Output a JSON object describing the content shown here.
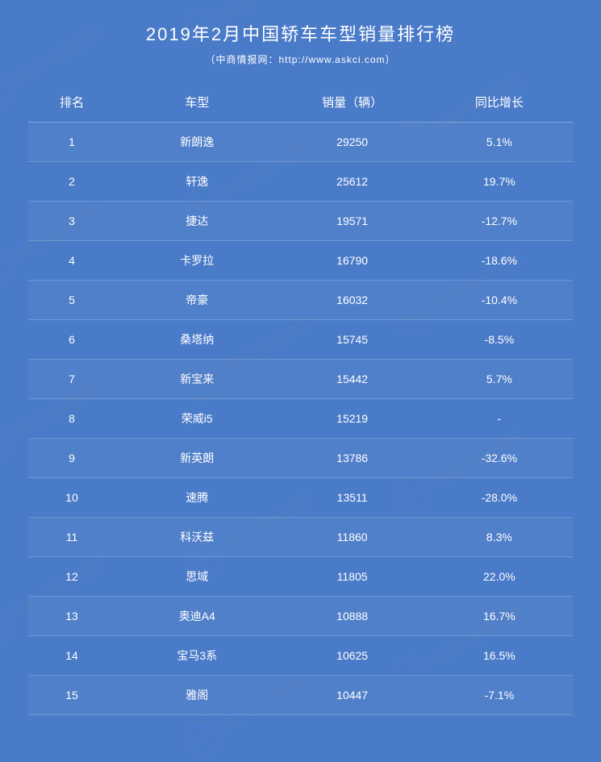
{
  "title": "2019年2月中国轿车车型销量排行榜",
  "subtitle": "（中商情报网：http://www.askci.com）",
  "watermark_text": "中商产业研究院",
  "background_color": "#4a7bc8",
  "text_color": "#ffffff",
  "columns": [
    "排名",
    "车型",
    "销量（辆）",
    "同比增长"
  ],
  "rows": [
    [
      "1",
      "新朗逸",
      "29250",
      "5.1%"
    ],
    [
      "2",
      "轩逸",
      "25612",
      "19.7%"
    ],
    [
      "3",
      "捷达",
      "19571",
      "-12.7%"
    ],
    [
      "4",
      "卡罗拉",
      "16790",
      "-18.6%"
    ],
    [
      "5",
      "帝豪",
      "16032",
      "-10.4%"
    ],
    [
      "6",
      "桑塔纳",
      "15745",
      "-8.5%"
    ],
    [
      "7",
      "新宝来",
      "15442",
      "5.7%"
    ],
    [
      "8",
      "荣威i5",
      "15219",
      "-"
    ],
    [
      "9",
      "新英朗",
      "13786",
      "-32.6%"
    ],
    [
      "10",
      "速腾",
      "13511",
      "-28.0%"
    ],
    [
      "11",
      "科沃兹",
      "11860",
      "8.3%"
    ],
    [
      "12",
      "思域",
      "11805",
      "22.0%"
    ],
    [
      "13",
      "奥迪A4",
      "10888",
      "16.7%"
    ],
    [
      "14",
      "宝马3系",
      "10625",
      "16.5%"
    ],
    [
      "15",
      "雅阁",
      "10447",
      "-7.1%"
    ]
  ]
}
